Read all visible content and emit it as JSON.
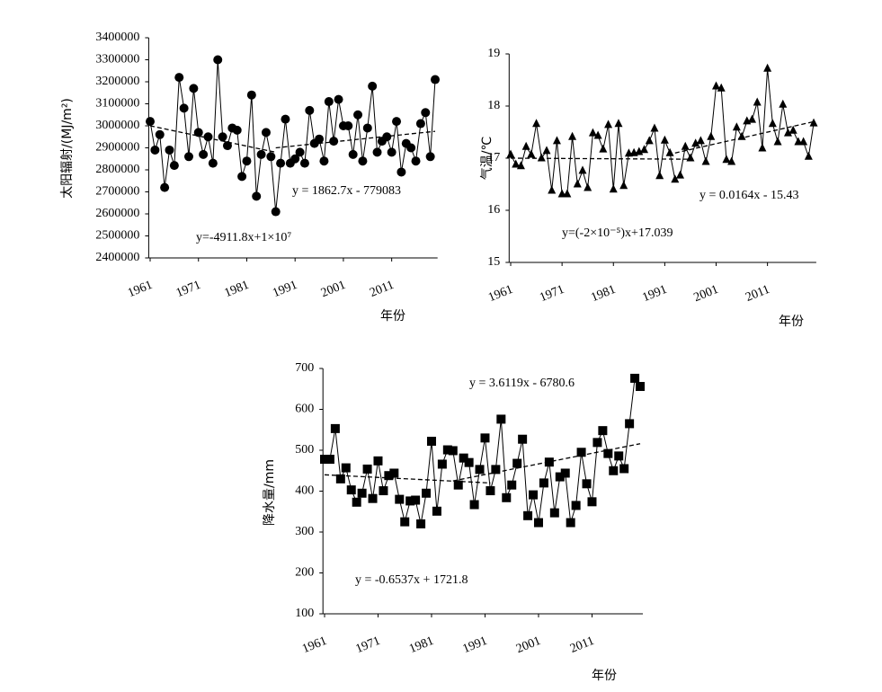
{
  "chart_data": [
    {
      "type": "line",
      "marker": "circle",
      "color": "#000000",
      "ylabel": "太阳辐射/(MJ/m²)",
      "xlabel": "年份",
      "annotations": [
        "y = 1862.7x - 779083",
        "y=-4911.8x+1×10⁷"
      ],
      "x": [
        1961,
        1962,
        1963,
        1964,
        1965,
        1966,
        1967,
        1968,
        1969,
        1970,
        1971,
        1972,
        1973,
        1974,
        1975,
        1976,
        1977,
        1978,
        1979,
        1980,
        1981,
        1982,
        1983,
        1984,
        1985,
        1986,
        1987,
        1988,
        1989,
        1990,
        1991,
        1992,
        1993,
        1994,
        1995,
        1996,
        1997,
        1998,
        1999,
        2000,
        2001,
        2002,
        2003,
        2004,
        2005,
        2006,
        2007,
        2008,
        2009,
        2010,
        2011,
        2012,
        2013,
        2014,
        2015,
        2016,
        2017,
        2018,
        2019,
        2020
      ],
      "values": [
        3020000,
        2890000,
        2960000,
        2720000,
        2890000,
        2820000,
        3220000,
        3080000,
        2860000,
        3170000,
        2970000,
        2870000,
        2950000,
        2830000,
        3300000,
        2950000,
        2910000,
        2990000,
        2980000,
        2770000,
        2840000,
        3140000,
        2680000,
        2870000,
        2970000,
        2860000,
        2610000,
        2830000,
        3030000,
        2830000,
        2850000,
        2880000,
        2830000,
        3070000,
        2920000,
        2940000,
        2840000,
        3110000,
        2930000,
        3120000,
        3000000,
        3000000,
        2870000,
        3050000,
        2840000,
        2990000,
        3180000,
        2880000,
        2930000,
        2950000,
        2880000,
        3020000,
        2790000,
        2920000,
        2900000,
        2840000,
        3010000,
        3060000,
        2860000,
        3210000
      ],
      "trend_lines": [
        {
          "x": [
            1961,
            1987
          ],
          "values": [
            3000000,
            2880000
          ]
        },
        {
          "x": [
            1987,
            2020
          ],
          "values": [
            2900000,
            2975000
          ]
        }
      ],
      "xlim": [
        1960.7,
        2020.5
      ],
      "xticks": [
        1961,
        1971,
        1981,
        1991,
        2001,
        2011
      ],
      "ylim": [
        2400000,
        3400000
      ],
      "yticks": [
        2400000,
        2500000,
        2600000,
        2700000,
        2800000,
        2900000,
        3000000,
        3100000,
        3200000,
        3300000,
        3400000
      ]
    },
    {
      "type": "line",
      "marker": "triangle",
      "color": "#000000",
      "ylabel": "气温/℃",
      "xlabel": "年份",
      "annotations": [
        "y = 0.0164x - 15.43",
        "y=(-2×10⁻⁵)x+17.039"
      ],
      "x": [
        1961,
        1962,
        1963,
        1964,
        1965,
        1966,
        1967,
        1968,
        1969,
        1970,
        1971,
        1972,
        1973,
        1974,
        1975,
        1976,
        1977,
        1978,
        1979,
        1980,
        1981,
        1982,
        1983,
        1984,
        1985,
        1986,
        1987,
        1988,
        1989,
        1990,
        1991,
        1992,
        1993,
        1994,
        1995,
        1996,
        1997,
        1998,
        1999,
        2000,
        2001,
        2002,
        2003,
        2004,
        2005,
        2006,
        2007,
        2008,
        2009,
        2010,
        2011,
        2012,
        2013,
        2014,
        2015,
        2016,
        2017,
        2018,
        2019,
        2020
      ],
      "values": [
        17.07,
        16.88,
        16.85,
        17.22,
        17.07,
        17.66,
        17.0,
        17.14,
        16.38,
        17.33,
        16.31,
        16.31,
        17.41,
        16.5,
        16.76,
        16.43,
        17.48,
        17.43,
        17.17,
        17.64,
        16.4,
        17.66,
        16.47,
        17.09,
        17.1,
        17.12,
        17.16,
        17.33,
        17.57,
        16.66,
        17.34,
        17.1,
        16.59,
        16.67,
        17.22,
        17.0,
        17.28,
        17.33,
        16.93,
        17.41,
        18.38,
        18.34,
        16.97,
        16.93,
        17.59,
        17.41,
        17.71,
        17.74,
        18.07,
        17.19,
        18.72,
        17.66,
        17.31,
        18.03,
        17.48,
        17.53,
        17.31,
        17.31,
        17.03,
        17.67
      ],
      "trend_lines": [
        {
          "x": [
            1961,
            1996
          ],
          "values": [
            17.0,
            16.98
          ]
        },
        {
          "x": [
            1993,
            2020
          ],
          "values": [
            17.1,
            17.7
          ]
        }
      ],
      "xlim": [
        1960.7,
        2020.5
      ],
      "xticks": [
        1961,
        1971,
        1981,
        1991,
        2001,
        2011
      ],
      "ylim": [
        15,
        19
      ],
      "yticks": [
        15,
        16,
        17,
        18,
        19
      ]
    },
    {
      "type": "line",
      "marker": "square",
      "color": "#000000",
      "ylabel": "降水量/mm",
      "xlabel": "年份",
      "annotations": [
        "y = 3.6119x - 6780.6",
        "y = -0.6537x + 1721.8"
      ],
      "x": [
        1961,
        1962,
        1963,
        1964,
        1965,
        1966,
        1967,
        1968,
        1969,
        1970,
        1971,
        1972,
        1973,
        1974,
        1975,
        1976,
        1977,
        1978,
        1979,
        1980,
        1981,
        1982,
        1983,
        1984,
        1985,
        1986,
        1987,
        1988,
        1989,
        1990,
        1991,
        1992,
        1993,
        1994,
        1995,
        1996,
        1997,
        1998,
        1999,
        2000,
        2001,
        2002,
        2003,
        2004,
        2005,
        2006,
        2007,
        2008,
        2009,
        2010,
        2011,
        2012,
        2013,
        2014,
        2015,
        2016,
        2017,
        2018,
        2019,
        2020
      ],
      "values": [
        478,
        478,
        553,
        430,
        457,
        403,
        373,
        395,
        454,
        382,
        474,
        401,
        438,
        444,
        380,
        325,
        376,
        378,
        320,
        395,
        522,
        351,
        466,
        501,
        499,
        415,
        481,
        470,
        367,
        453,
        530,
        401,
        453,
        576,
        384,
        415,
        468,
        527,
        340,
        391,
        323,
        420,
        471,
        347,
        435,
        444,
        323,
        365,
        495,
        418,
        374,
        519,
        548,
        492,
        450,
        486,
        455,
        565,
        676,
        656
      ],
      "trend_lines": [
        {
          "x": [
            1961,
            1992
          ],
          "values": [
            440,
            420
          ]
        },
        {
          "x": [
            1985,
            2020
          ],
          "values": [
            425,
            516
          ]
        }
      ],
      "xlim": [
        1960.7,
        2020.5
      ],
      "xticks": [
        1961,
        1971,
        1981,
        1991,
        2001,
        2011
      ],
      "ylim": [
        100,
        700
      ],
      "yticks": [
        100,
        200,
        300,
        400,
        500,
        600,
        700
      ]
    }
  ]
}
